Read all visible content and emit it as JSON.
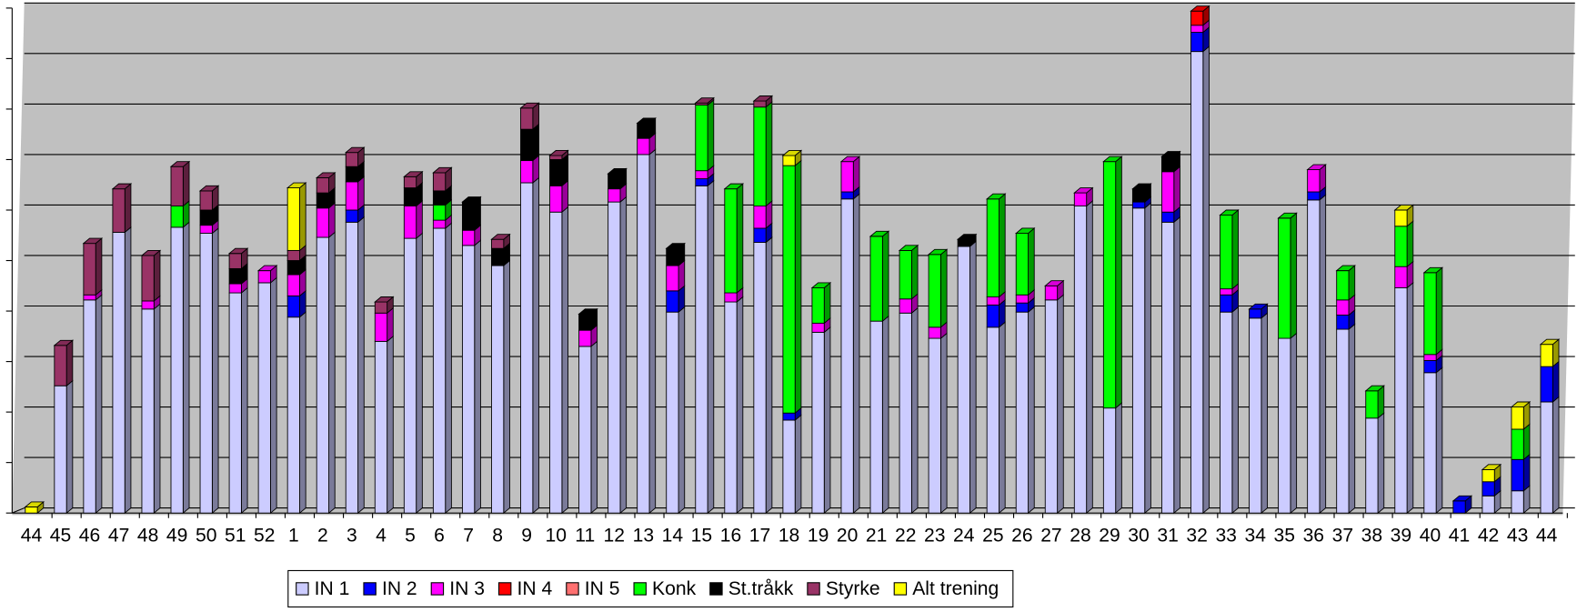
{
  "chart_data": {
    "type": "stacked-bar-3d",
    "categories": [
      "44",
      "45",
      "46",
      "47",
      "48",
      "49",
      "50",
      "51",
      "52",
      "1",
      "2",
      "3",
      "4",
      "5",
      "6",
      "7",
      "8",
      "9",
      "10",
      "11",
      "12",
      "13",
      "14",
      "15",
      "16",
      "17",
      "18",
      "19",
      "20",
      "21",
      "22",
      "23",
      "24",
      "25",
      "26",
      "27",
      "28",
      "29",
      "30",
      "31",
      "32",
      "33",
      "34",
      "35",
      "36",
      "37",
      "38",
      "39",
      "40",
      "41",
      "42",
      "43",
      "44"
    ],
    "series": [
      {
        "name": "IN 1",
        "color": "#ccccff",
        "values": [
          0,
          2.52,
          4.22,
          5.56,
          4.04,
          5.66,
          5.54,
          4.36,
          4.56,
          3.88,
          5.46,
          5.76,
          3.4,
          5.44,
          5.64,
          5.3,
          4.9,
          6.54,
          5.96,
          3.3,
          6.16,
          7.1,
          3.98,
          6.48,
          4.18,
          5.36,
          1.84,
          3.58,
          6.22,
          3.8,
          3.96,
          3.46,
          5.28,
          3.68,
          3.98,
          4.22,
          6.08,
          2.08,
          6.04,
          5.76,
          9.14,
          3.98,
          3.86,
          3.46,
          6.2,
          3.64,
          1.88,
          4.46,
          2.78,
          0,
          0.34,
          0.44,
          2.2
        ]
      },
      {
        "name": "IN 2",
        "color": "#0000ff",
        "values": [
          0,
          0,
          0,
          0,
          0,
          0,
          0,
          0,
          0,
          0.42,
          0,
          0.24,
          0,
          0,
          0,
          0,
          0,
          0,
          0,
          0,
          0,
          0,
          0.42,
          0.14,
          0,
          0.28,
          0.14,
          0,
          0.14,
          0,
          0,
          0,
          0,
          0.44,
          0.18,
          0,
          0,
          0,
          0.12,
          0.2,
          0.38,
          0.34,
          0.18,
          0,
          0.16,
          0.28,
          0,
          0,
          0.24,
          0.24,
          0.28,
          0.62,
          0.7
        ]
      },
      {
        "name": "IN 3",
        "color": "#ff00ff",
        "values": [
          0,
          0,
          0.1,
          0,
          0.16,
          0,
          0.16,
          0.18,
          0.24,
          0.42,
          0.58,
          0.56,
          0.56,
          0.64,
          0.16,
          0.3,
          0,
          0.44,
          0.52,
          0.32,
          0.26,
          0.32,
          0.5,
          0.16,
          0.18,
          0.44,
          0,
          0.18,
          0.6,
          0,
          0.28,
          0.22,
          0,
          0.16,
          0.16,
          0.28,
          0.26,
          0,
          0,
          0.8,
          0.14,
          0.12,
          0,
          0,
          0.44,
          0.3,
          0,
          0.42,
          0.12,
          0,
          0,
          0,
          0
        ]
      },
      {
        "name": "IN 4",
        "color": "#ff0000",
        "values": [
          0,
          0,
          0,
          0,
          0,
          0,
          0,
          0,
          0,
          0,
          0,
          0,
          0,
          0,
          0,
          0,
          0,
          0,
          0,
          0,
          0,
          0,
          0,
          0,
          0,
          0,
          0,
          0,
          0,
          0,
          0,
          0,
          0,
          0,
          0,
          0,
          0,
          0,
          0,
          0,
          0.28,
          0,
          0,
          0,
          0,
          0,
          0,
          0,
          0,
          0,
          0,
          0,
          0
        ]
      },
      {
        "name": "IN 5",
        "color": "#ff7070",
        "values": [
          0,
          0,
          0,
          0,
          0,
          0,
          0,
          0,
          0,
          0,
          0,
          0,
          0,
          0,
          0,
          0,
          0,
          0,
          0,
          0,
          0,
          0,
          0,
          0,
          0,
          0,
          0,
          0,
          0,
          0,
          0,
          0,
          0,
          0,
          0,
          0,
          0,
          0,
          0,
          0,
          0,
          0,
          0,
          0,
          0,
          0,
          0,
          0,
          0,
          0,
          0,
          0,
          0
        ]
      },
      {
        "name": "Konk",
        "color": "#00ff00",
        "values": [
          0,
          0,
          0,
          0,
          0,
          0.42,
          0,
          0,
          0,
          0,
          0,
          0,
          0,
          0,
          0.3,
          0,
          0,
          0,
          0,
          0,
          0,
          0,
          0,
          1.3,
          2.06,
          1.96,
          4.9,
          0.7,
          0,
          1.68,
          0.96,
          1.44,
          0,
          1.94,
          1.22,
          0,
          0,
          4.88,
          0,
          0,
          0,
          1.46,
          0,
          2.38,
          0,
          0.58,
          0.54,
          0.8,
          1.62,
          0,
          0,
          0.6,
          0
        ]
      },
      {
        "name": "St.tråkk",
        "color": "#000000",
        "values": [
          0,
          0,
          0,
          0,
          0,
          0,
          0.3,
          0.3,
          0,
          0.28,
          0.3,
          0.3,
          0,
          0.36,
          0.28,
          0.56,
          0.34,
          0.62,
          0.52,
          0.32,
          0.3,
          0.3,
          0.34,
          0,
          0,
          0,
          0,
          0,
          0,
          0,
          0,
          0,
          0.14,
          0,
          0,
          0,
          0,
          0,
          0.26,
          0.3,
          0,
          0,
          0,
          0,
          0,
          0,
          0,
          0,
          0,
          0,
          0,
          0,
          0
        ]
      },
      {
        "name": "Styrke",
        "color": "#993366",
        "values": [
          0,
          0.8,
          1.02,
          0.86,
          0.9,
          0.78,
          0.38,
          0.3,
          0,
          0.2,
          0.3,
          0.28,
          0.22,
          0.22,
          0.36,
          0,
          0.18,
          0.42,
          0.08,
          0,
          0,
          0,
          0,
          0.04,
          0,
          0.12,
          0,
          0,
          0,
          0,
          0,
          0,
          0,
          0,
          0,
          0,
          0,
          0,
          0,
          0,
          0,
          0,
          0,
          0,
          0,
          0,
          0,
          0,
          0,
          0,
          0,
          0,
          0
        ]
      },
      {
        "name": "Alt trening",
        "color": "#ffff00",
        "values": [
          0.12,
          0,
          0,
          0,
          0,
          0,
          0,
          0,
          0,
          1.24,
          0,
          0,
          0,
          0,
          0,
          0,
          0,
          0,
          0,
          0,
          0,
          0,
          0,
          0,
          0,
          0,
          0.2,
          0,
          0,
          0,
          0,
          0,
          0,
          0,
          0,
          0,
          0,
          0,
          0,
          0,
          0,
          0,
          0,
          0,
          0,
          0,
          0,
          0.32,
          0,
          0,
          0.24,
          0.44,
          0.44
        ]
      }
    ],
    "ylim": [
      0,
      10
    ],
    "yticks": [
      0,
      1,
      2,
      3,
      4,
      5,
      6,
      7,
      8,
      9,
      10
    ],
    "grid": true,
    "legend": "bottom"
  }
}
